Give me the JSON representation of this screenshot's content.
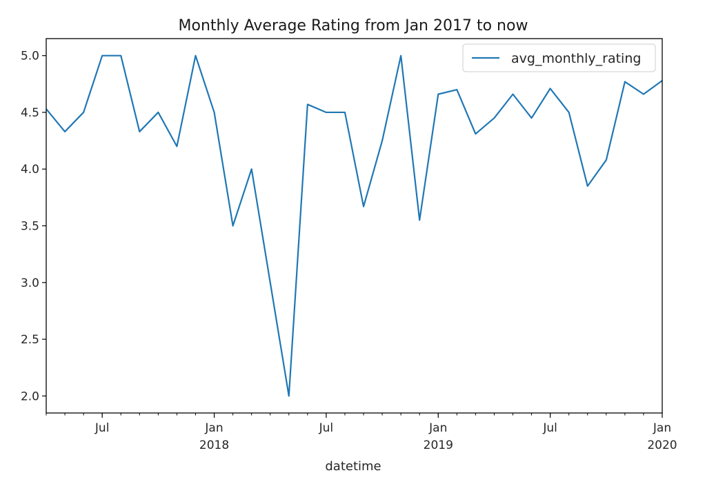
{
  "chart_data": {
    "type": "line",
    "title": "Monthly Average Rating from Jan 2017 to now",
    "xlabel": "datetime",
    "ylabel": "",
    "xlim": [
      "2017-04",
      "2020-01"
    ],
    "ylim": [
      1.85,
      5.15
    ],
    "y_ticks": [
      "2.0",
      "2.5",
      "3.0",
      "3.5",
      "4.0",
      "4.5",
      "5.0"
    ],
    "x_ticks": [
      {
        "month": "2017-07",
        "label": "Jul",
        "sublabel": ""
      },
      {
        "month": "2018-01",
        "label": "Jan",
        "sublabel": "2018"
      },
      {
        "month": "2018-07",
        "label": "Jul",
        "sublabel": ""
      },
      {
        "month": "2019-01",
        "label": "Jan",
        "sublabel": "2019"
      },
      {
        "month": "2019-07",
        "label": "Jul",
        "sublabel": ""
      },
      {
        "month": "2020-01",
        "label": "Jan",
        "sublabel": "2020"
      }
    ],
    "legend": {
      "position": "top-right"
    },
    "grid": false,
    "series": [
      {
        "name": "avg_monthly_rating",
        "color": "#1f77b4",
        "x": [
          "2017-04",
          "2017-05",
          "2017-06",
          "2017-07",
          "2017-08",
          "2017-09",
          "2017-10",
          "2017-11",
          "2017-12",
          "2018-01",
          "2018-02",
          "2018-03",
          "2018-04",
          "2018-05",
          "2018-06",
          "2018-07",
          "2018-08",
          "2018-09",
          "2018-10",
          "2018-11",
          "2018-12",
          "2019-01",
          "2019-02",
          "2019-03",
          "2019-04",
          "2019-05",
          "2019-06",
          "2019-07",
          "2019-08",
          "2019-09",
          "2019-10",
          "2019-11",
          "2019-12",
          "2020-01"
        ],
        "values": [
          4.53,
          4.33,
          4.5,
          5.0,
          5.0,
          4.33,
          4.5,
          4.2,
          5.0,
          4.5,
          3.5,
          4.0,
          3.0,
          2.0,
          4.57,
          4.5,
          4.5,
          3.67,
          4.25,
          5.0,
          3.55,
          4.66,
          4.7,
          4.31,
          4.45,
          4.66,
          4.45,
          4.71,
          4.5,
          3.85,
          4.08,
          4.77,
          4.66,
          4.78
        ]
      }
    ]
  }
}
